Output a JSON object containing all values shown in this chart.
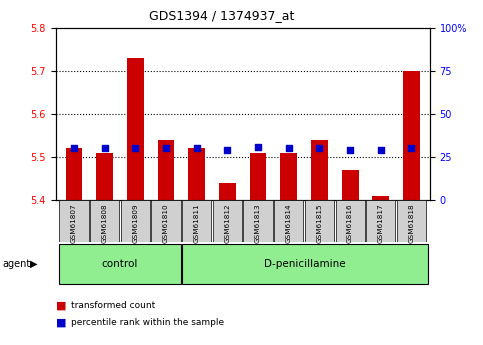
{
  "title": "GDS1394 / 1374937_at",
  "samples": [
    "GSM61807",
    "GSM61808",
    "GSM61809",
    "GSM61810",
    "GSM61811",
    "GSM61812",
    "GSM61813",
    "GSM61814",
    "GSM61815",
    "GSM61816",
    "GSM61817",
    "GSM61818"
  ],
  "red_values": [
    5.52,
    5.51,
    5.73,
    5.54,
    5.52,
    5.44,
    5.51,
    5.51,
    5.54,
    5.47,
    5.41,
    5.7
  ],
  "blue_pct": [
    30,
    30,
    30,
    30,
    30,
    29,
    31,
    30,
    30,
    29,
    29,
    30
  ],
  "ylim_left": [
    5.4,
    5.8
  ],
  "ylim_right": [
    0,
    100
  ],
  "y_ticks_left": [
    5.4,
    5.5,
    5.6,
    5.7,
    5.8
  ],
  "y_ticks_right": [
    0,
    25,
    50,
    75,
    100
  ],
  "y_ticks_right_labels": [
    "0",
    "25",
    "50",
    "75",
    "100%"
  ],
  "bar_color": "#cc0000",
  "dot_color": "#0000cc",
  "group_color": "#90ee90",
  "tick_box_color": "#d0d0d0",
  "legend_items": [
    "transformed count",
    "percentile rank within the sample"
  ]
}
